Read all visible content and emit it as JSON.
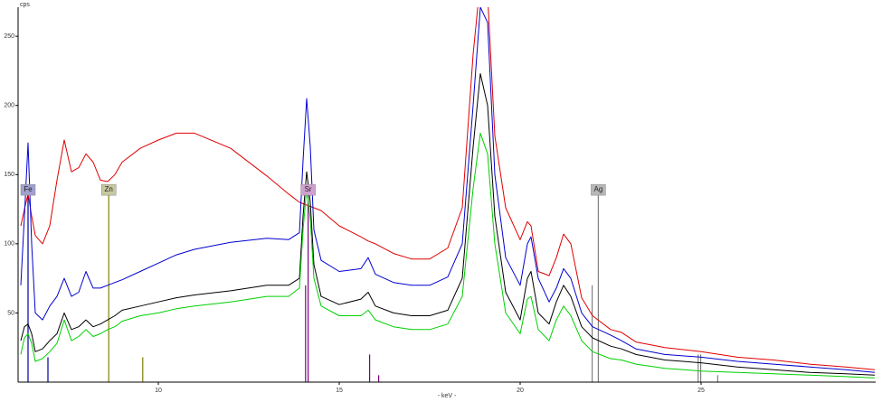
{
  "chart_data": {
    "type": "line",
    "y_axis_label": "cps",
    "x_axis_label": "- keV -",
    "xlim": [
      6.125,
      29.825
    ],
    "ylim": [
      0,
      271
    ],
    "xticks": [
      10,
      15,
      20,
      25
    ],
    "yticks": [
      50,
      100,
      150,
      200,
      250
    ],
    "x": [
      6.2,
      6.3,
      6.4,
      6.5,
      6.6,
      6.8,
      7.0,
      7.2,
      7.4,
      7.6,
      7.8,
      8.0,
      8.2,
      8.4,
      8.6,
      8.8,
      9.0,
      9.5,
      10.0,
      10.5,
      11.0,
      12.0,
      13.0,
      13.6,
      13.9,
      14.0,
      14.1,
      14.2,
      14.3,
      14.5,
      15.0,
      15.6,
      15.8,
      16.0,
      16.5,
      17.0,
      17.5,
      18.0,
      18.4,
      18.7,
      18.9,
      19.1,
      19.3,
      19.6,
      20.0,
      20.2,
      20.3,
      20.5,
      20.8,
      21.0,
      21.2,
      21.4,
      21.7,
      22.0,
      22.5,
      22.8,
      23.2,
      24.0,
      25.0,
      26.0,
      27.0,
      28.0,
      29.0,
      29.8
    ],
    "series": [
      {
        "color": "#e00000",
        "values": [
          113,
          125,
          136,
          120,
          106,
          100,
          113,
          146,
          175,
          152,
          155,
          165,
          159,
          146,
          145,
          150,
          159,
          169,
          175,
          180,
          180,
          169,
          149,
          136,
          130,
          129,
          128,
          127,
          126,
          124,
          113,
          105,
          102,
          100,
          93,
          89,
          89,
          97,
          126,
          237,
          290,
          280,
          178,
          126,
          103,
          116,
          113,
          80,
          77,
          90,
          107,
          100,
          61,
          48,
          38,
          36,
          29,
          25,
          22,
          18,
          16,
          13,
          11,
          9
        ]
      },
      {
        "color": "#0000d0",
        "values": [
          70,
          120,
          173,
          100,
          50,
          45,
          55,
          62,
          75,
          62,
          65,
          80,
          68,
          68,
          70,
          72,
          74,
          80,
          86,
          92,
          96,
          101,
          104,
          103,
          108,
          160,
          205,
          170,
          110,
          88,
          80,
          82,
          90,
          78,
          72,
          70,
          70,
          76,
          100,
          200,
          271,
          260,
          150,
          90,
          70,
          100,
          105,
          75,
          58,
          68,
          82,
          75,
          50,
          40,
          34,
          30,
          24,
          20,
          18,
          15,
          13,
          11,
          9,
          7
        ]
      },
      {
        "color": "#000000",
        "values": [
          30,
          40,
          42,
          35,
          22,
          24,
          30,
          35,
          50,
          38,
          40,
          45,
          40,
          42,
          45,
          48,
          52,
          55,
          58,
          61,
          63,
          66,
          70,
          70,
          75,
          120,
          152,
          130,
          85,
          62,
          56,
          60,
          65,
          55,
          50,
          48,
          48,
          52,
          75,
          170,
          223,
          200,
          120,
          65,
          45,
          75,
          80,
          50,
          42,
          58,
          70,
          62,
          40,
          32,
          26,
          24,
          20,
          16,
          14,
          11,
          9,
          7,
          6,
          5
        ]
      },
      {
        "color": "#00d000",
        "values": [
          20,
          32,
          35,
          28,
          15,
          17,
          22,
          28,
          45,
          30,
          33,
          38,
          33,
          35,
          38,
          40,
          44,
          48,
          50,
          53,
          55,
          58,
          62,
          62,
          68,
          110,
          140,
          118,
          75,
          55,
          48,
          48,
          52,
          45,
          40,
          38,
          38,
          42,
          62,
          140,
          180,
          165,
          100,
          50,
          35,
          60,
          62,
          38,
          30,
          45,
          55,
          48,
          30,
          22,
          17,
          16,
          13,
          10,
          8,
          7,
          6,
          5,
          4,
          3
        ]
      }
    ],
    "markers": [
      {
        "name": "Fe",
        "color": "#0000a0",
        "label_color": "#a0a0d0",
        "lines": [
          {
            "x": 6.4,
            "h": 139
          },
          {
            "x": 6.95,
            "h": 18
          }
        ]
      },
      {
        "name": "Zn",
        "color": "#808000",
        "label_color": "#c8c8a0",
        "lines": [
          {
            "x": 8.63,
            "h": 139
          },
          {
            "x": 9.57,
            "h": 18
          }
        ]
      },
      {
        "name": "Sr",
        "color": "#800080",
        "label_color": "#d0a0d0",
        "lines": [
          {
            "x": 14.14,
            "h": 139
          },
          {
            "x": 14.07,
            "h": 70
          },
          {
            "x": 15.84,
            "h": 20
          },
          {
            "x": 16.09,
            "h": 5
          }
        ]
      },
      {
        "name": "Ag",
        "color": "#808080",
        "label_color": "#b8b8b8",
        "lines": [
          {
            "x": 22.16,
            "h": 139
          },
          {
            "x": 21.99,
            "h": 70
          },
          {
            "x": 24.92,
            "h": 20
          },
          {
            "x": 24.99,
            "h": 20
          },
          {
            "x": 25.46,
            "h": 5
          }
        ]
      }
    ]
  }
}
